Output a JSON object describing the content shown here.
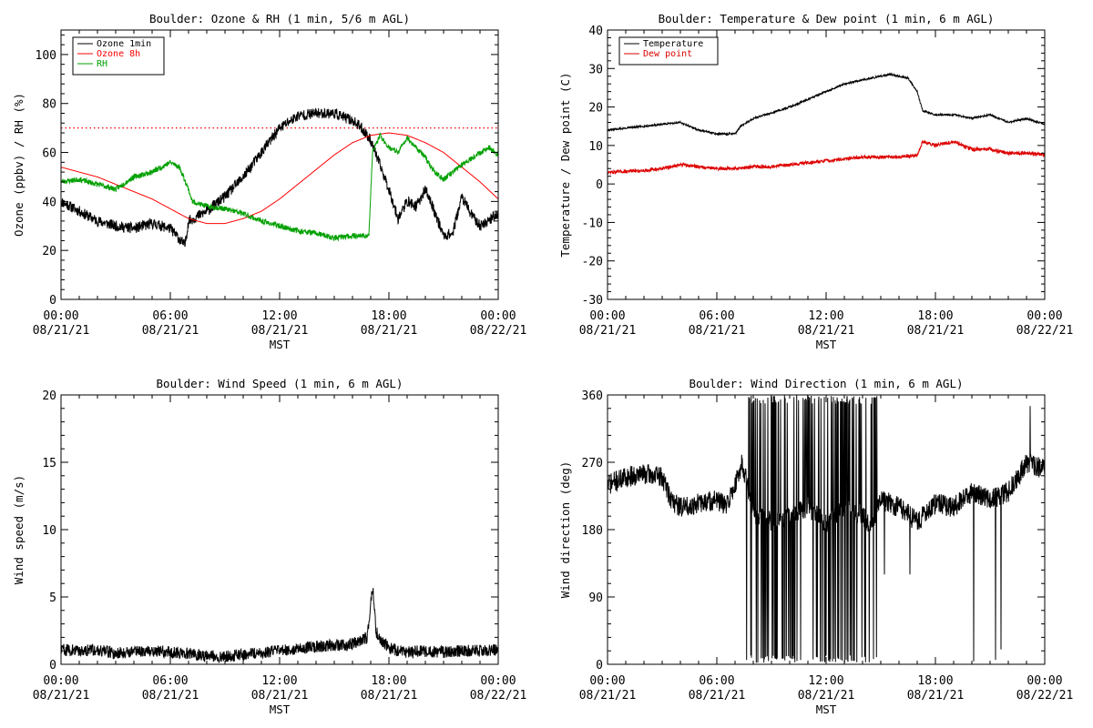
{
  "chart_data": [
    {
      "type": "line",
      "title": "Boulder: Ozone & RH (1 min, 5/6 m AGL)",
      "xlabel": "MST",
      "ylabel": "Ozone (ppbv) / RH (%)",
      "xlim": [
        0,
        24
      ],
      "ylim": [
        0,
        110
      ],
      "xticks": [
        [
          0,
          "00:00",
          "08/21/21"
        ],
        [
          6,
          "06:00",
          "08/21/21"
        ],
        [
          12,
          "12:00",
          "08/21/21"
        ],
        [
          18,
          "18:00",
          "08/21/21"
        ],
        [
          24,
          "00:00",
          "08/22/21"
        ]
      ],
      "yticks": [
        0,
        20,
        40,
        60,
        80,
        100
      ],
      "legend": "top-left",
      "reference_line": {
        "y": 70,
        "color": "#ff0000",
        "style": "dotted"
      },
      "series": [
        {
          "name": "Ozone 1min",
          "color": "#000000",
          "noise": 2.2,
          "seed": 11,
          "x": [
            0,
            1,
            2,
            3,
            4,
            5,
            6,
            6.8,
            7,
            8,
            9,
            10,
            11,
            12,
            13,
            14,
            15,
            16,
            16.5,
            17,
            17.5,
            18,
            18.5,
            19,
            19.5,
            20,
            20.5,
            21,
            21.5,
            22,
            22.5,
            23,
            24
          ],
          "y": [
            40,
            36,
            32,
            30,
            29,
            31,
            29,
            22,
            32,
            36,
            42,
            50,
            60,
            70,
            75,
            76,
            76,
            73,
            70,
            65,
            55,
            45,
            33,
            40,
            38,
            45,
            36,
            26,
            27,
            42,
            35,
            30,
            35
          ]
        },
        {
          "name": "Ozone 8h",
          "color": "#ff0000",
          "noise": 0,
          "seed": 0,
          "x": [
            0,
            1,
            2,
            3,
            4,
            5,
            6,
            7,
            8,
            9,
            10,
            11,
            12,
            13,
            14,
            15,
            16,
            17,
            18,
            19,
            20,
            21,
            22,
            23,
            24
          ],
          "y": [
            54,
            52,
            50,
            47,
            44,
            41,
            37,
            33,
            31,
            31,
            33,
            36,
            41,
            47,
            53,
            59,
            64,
            67,
            68,
            67,
            64,
            60,
            54,
            48,
            41
          ]
        },
        {
          "name": "RH",
          "color": "#00a000",
          "noise": 1.1,
          "seed": 23,
          "x": [
            0,
            1,
            2,
            3,
            4,
            5,
            6,
            6.5,
            7,
            7.2,
            8,
            9,
            10,
            11,
            12,
            13,
            14,
            15,
            16,
            16.9,
            17.1,
            17.5,
            18,
            18.5,
            19,
            19.5,
            20,
            20.5,
            21,
            22,
            23,
            23.5,
            24
          ],
          "y": [
            48,
            49,
            47,
            45,
            50,
            52,
            56,
            54,
            45,
            40,
            38,
            37,
            35,
            32,
            30,
            28,
            27,
            25,
            26,
            26,
            60,
            67,
            62,
            60,
            66,
            62,
            58,
            52,
            49,
            55,
            60,
            62,
            59
          ]
        }
      ]
    },
    {
      "type": "line",
      "title": "Boulder: Temperature & Dew point (1 min, 6 m AGL)",
      "xlabel": "MST",
      "ylabel": "Temperature / Dew point (C)",
      "xlim": [
        0,
        24
      ],
      "ylim": [
        -30,
        40
      ],
      "xticks": [
        [
          0,
          "00:00",
          "08/21/21"
        ],
        [
          6,
          "06:00",
          "08/21/21"
        ],
        [
          12,
          "12:00",
          "08/21/21"
        ],
        [
          18,
          "18:00",
          "08/21/21"
        ],
        [
          24,
          "00:00",
          "08/22/21"
        ]
      ],
      "yticks": [
        -30,
        -20,
        -10,
        0,
        10,
        20,
        30,
        40
      ],
      "legend": "top-left",
      "series": [
        {
          "name": "Temperature",
          "color": "#000000",
          "noise": 0.25,
          "seed": 31,
          "x": [
            0,
            1,
            2,
            3,
            4,
            5,
            6,
            7,
            7.3,
            8,
            9,
            10,
            11,
            12,
            13,
            14,
            15,
            15.5,
            16,
            16.5,
            17,
            17.3,
            18,
            19,
            20,
            21,
            22,
            23,
            24
          ],
          "y": [
            14,
            14.5,
            15,
            15.5,
            16,
            14,
            13,
            13,
            15,
            17,
            18.5,
            20,
            22,
            24,
            26,
            27,
            28,
            28.5,
            28,
            27.5,
            24,
            19,
            18,
            18,
            17,
            18,
            16,
            17,
            15.5
          ]
        },
        {
          "name": "Dew point",
          "color": "#dd0000",
          "noise": 0.45,
          "seed": 47,
          "x": [
            0,
            2,
            3,
            4,
            5,
            6,
            7,
            8,
            9,
            10,
            11,
            12,
            13,
            14,
            15,
            16,
            17,
            17.3,
            18,
            19,
            20,
            21,
            22,
            23,
            24
          ],
          "y": [
            3,
            3.5,
            4,
            5,
            4.5,
            4,
            4,
            4.5,
            4.5,
            5,
            5.5,
            6,
            6.5,
            7,
            7,
            7,
            7.5,
            11,
            10,
            11,
            9,
            9,
            8,
            8,
            7.5
          ]
        }
      ]
    },
    {
      "type": "line",
      "title": "Boulder: Wind Speed (1 min, 6 m AGL)",
      "xlabel": "MST",
      "ylabel": "Wind speed (m/s)",
      "xlim": [
        0,
        24
      ],
      "ylim": [
        0,
        20
      ],
      "xticks": [
        [
          0,
          "00:00",
          "08/21/21"
        ],
        [
          6,
          "06:00",
          "08/21/21"
        ],
        [
          12,
          "12:00",
          "08/21/21"
        ],
        [
          18,
          "18:00",
          "08/21/21"
        ],
        [
          24,
          "00:00",
          "08/22/21"
        ]
      ],
      "yticks": [
        0,
        5,
        10,
        15,
        20
      ],
      "series": [
        {
          "name": "",
          "color": "#000000",
          "noise": 0.45,
          "seed": 59,
          "floor": 0.05,
          "x": [
            0,
            1,
            2,
            3,
            4,
            5,
            6,
            7,
            8,
            9,
            10,
            11,
            12,
            13,
            14,
            15,
            16,
            16.8,
            17.1,
            17.3,
            17.6,
            18,
            19,
            20,
            21,
            22,
            23,
            24
          ],
          "y": [
            1.1,
            1,
            1.1,
            0.8,
            1,
            1,
            0.9,
            0.8,
            0.6,
            0.6,
            0.7,
            0.9,
            1,
            1.2,
            1.3,
            1.4,
            1.5,
            2,
            5.8,
            2.4,
            1.8,
            1.2,
            0.9,
            1,
            0.9,
            1,
            1,
            1.1
          ]
        }
      ]
    },
    {
      "type": "line",
      "title": "Boulder: Wind Direction (1 min, 6 m AGL)",
      "xlabel": "MST",
      "ylabel": "Wind direction (deg)",
      "xlim": [
        0,
        24
      ],
      "ylim": [
        0,
        360
      ],
      "xticks": [
        [
          0,
          "00:00",
          "08/21/21"
        ],
        [
          6,
          "06:00",
          "08/21/21"
        ],
        [
          12,
          "12:00",
          "08/21/21"
        ],
        [
          18,
          "18:00",
          "08/21/21"
        ],
        [
          24,
          "00:00",
          "08/22/21"
        ]
      ],
      "yticks": [
        0,
        90,
        180,
        270,
        360
      ],
      "series": [
        {
          "name": "",
          "color": "#000000",
          "noise": 14,
          "seed": 71,
          "clip": [
            0,
            360
          ],
          "x": [
            0,
            1,
            2,
            3,
            3.5,
            4,
            5,
            6,
            6.5,
            7,
            7.4,
            8,
            9,
            10,
            11,
            12,
            13,
            14,
            14.5,
            15,
            16,
            17,
            18,
            19,
            20,
            21,
            21.5,
            22,
            23,
            24
          ],
          "y": [
            240,
            250,
            255,
            250,
            220,
            210,
            215,
            220,
            210,
            240,
            270,
            200,
            190,
            200,
            210,
            190,
            210,
            200,
            180,
            220,
            210,
            190,
            215,
            210,
            230,
            220,
            225,
            230,
            270,
            260
          ],
          "swing_range": [
            7.6,
            14.8
          ],
          "swing_p": 0.32,
          "spikes": [
            [
              20.1,
              4
            ],
            [
              21.3,
              6
            ],
            [
              21.6,
              20
            ],
            [
              16.6,
              120
            ],
            [
              15.2,
              120
            ],
            [
              23.2,
              345
            ]
          ]
        }
      ]
    }
  ]
}
